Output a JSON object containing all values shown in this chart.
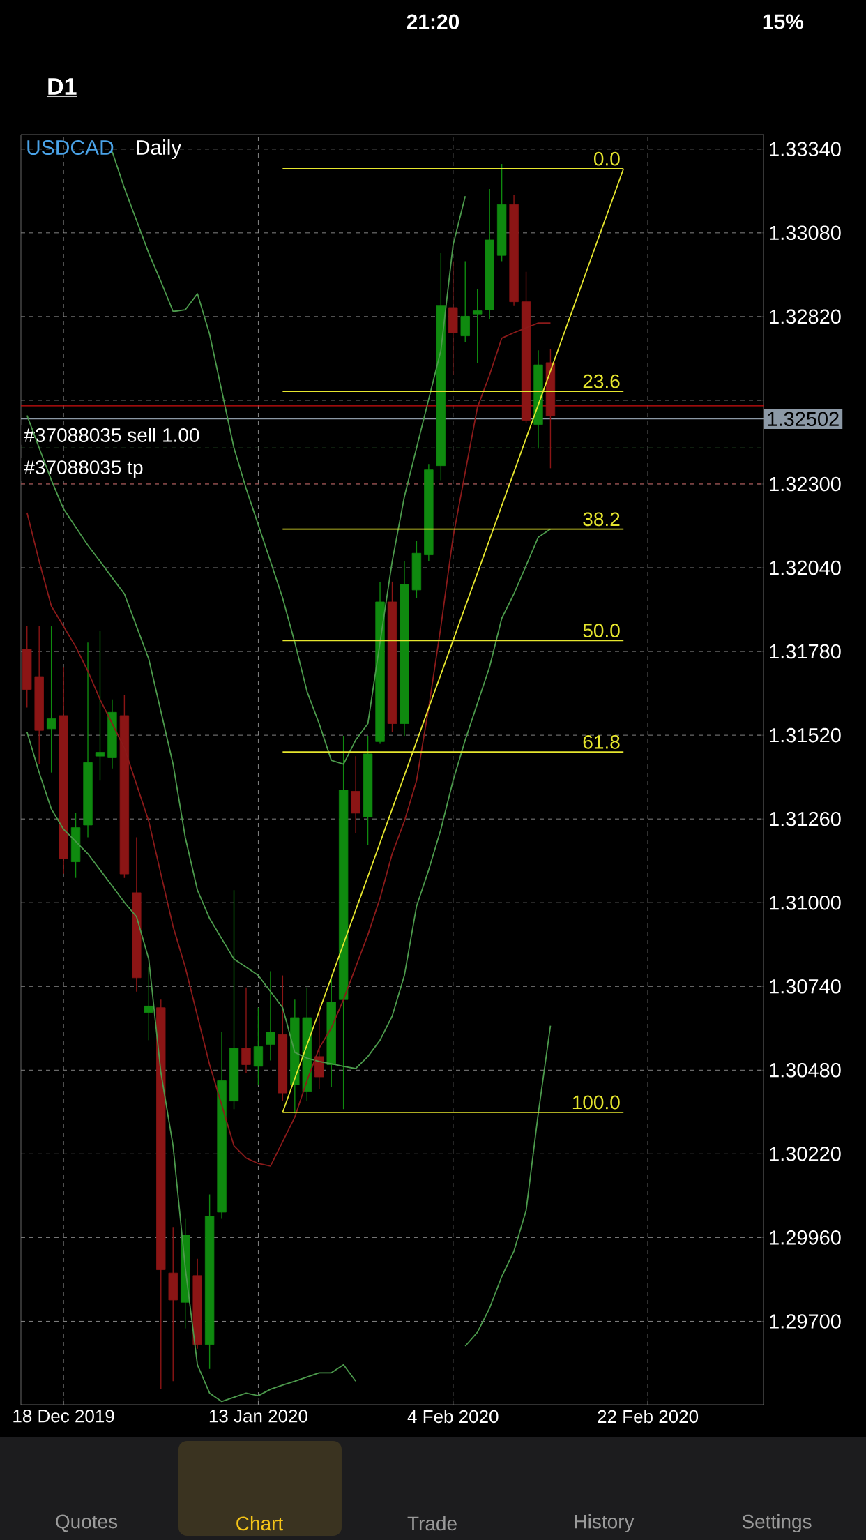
{
  "chart_data": {
    "type": "candlestick",
    "title": "USDCAD",
    "subtitle": "Daily",
    "categories": [
      null,
      null,
      null,
      "18 Dec 2019",
      null,
      null,
      null,
      null,
      null,
      null,
      null,
      null,
      null,
      null,
      null,
      null,
      null,
      null,
      null,
      "13 Jan 2020",
      null,
      null,
      null,
      null,
      null,
      null,
      null,
      null,
      null,
      null,
      null,
      null,
      null,
      null,
      null,
      "4 Feb 2020",
      null,
      null,
      null,
      null,
      null,
      null,
      null,
      null,
      null,
      null,
      null,
      null,
      null,
      null,
      null,
      "22 Feb 2020",
      null,
      null,
      null,
      null,
      null,
      null,
      null,
      null,
      null
    ],
    "ohlc": [
      [
        1.31787,
        1.31858,
        1.31606,
        1.31662
      ],
      [
        1.31702,
        1.31858,
        1.3143,
        1.31535
      ],
      [
        1.3154,
        1.31858,
        1.31404,
        1.31571
      ],
      [
        1.31581,
        1.31732,
        1.31089,
        1.31137
      ],
      [
        1.31127,
        1.31278,
        1.31077,
        1.31233
      ],
      [
        1.31241,
        1.31808,
        1.31203,
        1.31435
      ],
      [
        1.31455,
        1.31845,
        1.31379,
        1.31467
      ],
      [
        1.3145,
        1.31631,
        1.31417,
        1.31591
      ],
      [
        1.31581,
        1.31644,
        1.31077,
        1.31089
      ],
      [
        1.31031,
        1.31203,
        1.30724,
        1.30767
      ],
      [
        1.30659,
        1.308,
        1.30573,
        1.30679
      ],
      [
        1.30674,
        1.30699,
        1.29489,
        1.2986
      ],
      [
        1.2985,
        1.29993,
        1.29514,
        1.29766
      ],
      [
        1.29759,
        1.30018,
        1.29678,
        1.29968
      ],
      [
        1.29842,
        1.29894,
        1.29615,
        1.29628
      ],
      [
        1.29628,
        1.30094,
        1.29552,
        1.30026
      ],
      [
        1.30039,
        1.30598,
        1.30018,
        1.30447
      ],
      [
        1.30384,
        1.31039,
        1.30359,
        1.30548
      ],
      [
        1.30548,
        1.30737,
        1.30472,
        1.30497
      ],
      [
        1.30492,
        1.30674,
        1.30434,
        1.30553
      ],
      [
        1.3056,
        1.30787,
        1.3051,
        1.30598
      ],
      [
        1.3059,
        1.30774,
        1.30384,
        1.30409
      ],
      [
        1.30434,
        1.30699,
        1.30346,
        1.30643
      ],
      [
        1.30414,
        1.30737,
        1.30384,
        1.30643
      ],
      [
        1.30522,
        1.30686,
        1.30422,
        1.30459
      ],
      [
        1.30497,
        1.30762,
        1.30427,
        1.30691
      ],
      [
        1.30699,
        1.31518,
        1.30359,
        1.31349
      ],
      [
        1.31346,
        1.31455,
        1.31215,
        1.31278
      ],
      [
        1.31266,
        1.31518,
        1.31178,
        1.31462
      ],
      [
        1.315,
        1.31997,
        1.31493,
        1.31934
      ],
      [
        1.31934,
        1.31997,
        1.3153,
        1.31556
      ],
      [
        1.31556,
        1.3206,
        1.31518,
        1.31989
      ],
      [
        1.31971,
        1.32123,
        1.31946,
        1.32085
      ],
      [
        1.3208,
        1.32362,
        1.3206,
        1.32344
      ],
      [
        1.32357,
        1.33017,
        1.32312,
        1.32853
      ],
      [
        1.32848,
        1.32992,
        1.32639,
        1.3277
      ],
      [
        1.3276,
        1.32992,
        1.3274,
        1.32821
      ],
      [
        1.32828,
        1.32904,
        1.32677,
        1.32838
      ],
      [
        1.32841,
        1.33216,
        1.32811,
        1.33058
      ],
      [
        1.3301,
        1.33294,
        1.32992,
        1.33168
      ],
      [
        1.33168,
        1.33199,
        1.32853,
        1.32866
      ],
      [
        1.32866,
        1.32959,
        1.32488,
        1.32498
      ],
      [
        1.32485,
        1.32715,
        1.3241,
        1.3267
      ],
      [
        1.32677,
        1.3272,
        1.32349,
        1.32511
      ],
      null,
      null,
      null,
      null,
      null,
      null,
      null,
      null,
      null,
      null,
      null,
      null,
      null,
      null,
      null,
      null,
      null
    ],
    "colors": [
      "#8b1515",
      "#8b1515",
      "#0f8a0f",
      "#8b1515",
      "#0f8a0f",
      "#0f8a0f",
      "#0f8a0f",
      "#0f8a0f",
      "#8b1515",
      "#8b1515",
      "#0f8a0f",
      "#8b1515",
      "#8b1515",
      "#0f8a0f",
      "#8b1515",
      "#0f8a0f",
      "#0f8a0f",
      "#0f8a0f",
      "#8b1515",
      "#0f8a0f",
      "#0f8a0f",
      "#8b1515",
      "#0f8a0f",
      "#0f8a0f",
      "#8b1515",
      "#0f8a0f",
      "#0f8a0f",
      "#8b1515",
      "#0f8a0f",
      "#0f8a0f",
      "#8b1515",
      "#0f8a0f",
      "#0f8a0f",
      "#0f8a0f",
      "#0f8a0f",
      "#8b1515",
      "#0f8a0f",
      "#0f8a0f",
      "#0f8a0f",
      "#0f8a0f",
      "#8b1515",
      "#8b1515",
      "#0f8a0f",
      "#8b1515",
      null,
      null,
      null,
      null,
      null,
      null,
      null,
      null,
      null,
      null,
      null,
      null,
      null,
      null,
      null,
      null,
      null
    ],
    "ylim": [
      1.29441,
      1.33385
    ],
    "yticks": [
      {
        "value": 1.297,
        "label": "1.29700"
      },
      {
        "value": 1.2996,
        "label": "1.29960"
      },
      {
        "value": 1.3022,
        "label": "1.30220"
      },
      {
        "value": 1.3048,
        "label": "1.30480"
      },
      {
        "value": 1.3074,
        "label": "1.30740"
      },
      {
        "value": 1.31,
        "label": "1.31000"
      },
      {
        "value": 1.3126,
        "label": "1.31260"
      },
      {
        "value": 1.3152,
        "label": "1.31520"
      },
      {
        "value": 1.3178,
        "label": "1.31780"
      },
      {
        "value": 1.3204,
        "label": "1.32040"
      },
      {
        "value": 1.323,
        "label": "1.32300"
      },
      {
        "value": 1.3256,
        "label": null
      },
      {
        "value": 1.3282,
        "label": "1.32820"
      },
      {
        "value": 1.3308,
        "label": "1.33080"
      },
      {
        "value": 1.3334,
        "label": "1.33340"
      }
    ],
    "grid": true,
    "series": [
      {
        "type": "line",
        "color": "#4c9a4c",
        "values": [
          1.32513,
          1.32412,
          1.32312,
          1.32223,
          1.32166,
          1.3211,
          1.3206,
          1.32009,
          1.31959,
          1.31858,
          1.31757,
          1.31594,
          1.3143,
          1.31203,
          1.31039,
          1.30951,
          1.30888,
          1.30825,
          1.308,
          1.30774,
          1.30724,
          1.30674,
          1.30535,
          1.30517,
          1.30507,
          1.305,
          1.30492,
          1.30485,
          1.30522,
          1.30573,
          1.30648,
          1.30774,
          1.30989,
          1.31102,
          1.31228,
          1.31379,
          1.31505,
          1.31619,
          1.31732,
          1.31883,
          1.31959,
          1.32047,
          1.32135,
          1.3216,
          null,
          null,
          null,
          null,
          null,
          null,
          null,
          null,
          null,
          null,
          null,
          null,
          null,
          null,
          null,
          null,
          null
        ]
      },
      {
        "type": "line",
        "color": "#4c9a4c",
        "values": [
          null,
          null,
          null,
          null,
          null,
          null,
          null,
          1.33332,
          1.33219,
          1.33118,
          1.33017,
          1.32929,
          1.32836,
          1.32841,
          1.32891,
          1.32765,
          1.32589,
          1.32412,
          1.32286,
          1.32173,
          1.3206,
          1.31946,
          1.31808,
          1.31656,
          1.31556,
          1.31442,
          1.3143,
          1.31505,
          1.31556,
          1.31808,
          1.3206,
          1.32261,
          1.32412,
          1.32564,
          1.32715,
          1.33042,
          1.33194,
          null,
          null,
          null,
          null,
          null,
          null,
          null,
          null,
          null,
          null,
          null,
          null,
          null,
          null,
          null,
          null,
          null,
          null,
          null,
          null,
          null,
          null,
          null,
          null
        ]
      },
      {
        "type": "line",
        "color": "#4c9a4c",
        "values": [
          1.3153,
          1.31404,
          1.31291,
          1.31228,
          1.3119,
          1.31152,
          1.31102,
          1.31052,
          1.31001,
          1.30956,
          1.30825,
          1.30472,
          1.30245,
          1.29867,
          1.29565,
          1.29477,
          1.29451,
          1.29464,
          1.29477,
          1.29469,
          1.29489,
          1.29502,
          1.29514,
          1.29527,
          1.2954,
          1.2954,
          1.29565,
          1.29514,
          null,
          null,
          null,
          null,
          null,
          null,
          null,
          null,
          1.29623,
          1.29666,
          1.29741,
          1.29839,
          1.29918,
          1.30044,
          1.30346,
          1.30618,
          null,
          null,
          null,
          null,
          null,
          null,
          null,
          null,
          null,
          null,
          null,
          null,
          null,
          null,
          null,
          null,
          null
        ]
      },
      {
        "type": "line",
        "color": "#8b1a1a",
        "values": [
          1.32211,
          1.3206,
          1.31921,
          1.31858,
          1.31795,
          1.31719,
          1.31631,
          1.31556,
          1.3148,
          1.31367,
          1.31253,
          1.31089,
          1.30926,
          1.308,
          1.30648,
          1.30497,
          1.30371,
          1.30245,
          1.30207,
          1.3019,
          1.30182,
          1.30258,
          1.30334,
          1.30447,
          1.30548,
          1.30611,
          1.30699,
          1.308,
          1.309,
          1.31014,
          1.31152,
          1.31253,
          1.31379,
          1.31606,
          1.31858,
          1.32135,
          1.32337,
          1.32538,
          1.32639,
          1.32753,
          1.3277,
          1.32785,
          1.328,
          1.328,
          null,
          null,
          null,
          null,
          null,
          null,
          null,
          null,
          null,
          null,
          null,
          null,
          null,
          null,
          null,
          null,
          null
        ]
      },
      {
        "type": "line",
        "color": "#e6e62e",
        "name": "0.0",
        "values": [
          null,
          null,
          null,
          null,
          null,
          null,
          null,
          null,
          null,
          null,
          null,
          null,
          null,
          null,
          null,
          null,
          null,
          null,
          null,
          null,
          null,
          1.33279,
          1.33279,
          1.33279,
          1.33279,
          1.33279,
          1.33279,
          1.33279,
          1.33279,
          1.33279,
          1.33279,
          1.33279,
          1.33279,
          1.33279,
          1.33279,
          1.33279,
          1.33279,
          1.33279,
          1.33279,
          1.33279,
          1.33279,
          1.33279,
          1.33279,
          1.33279,
          1.33279,
          1.33279,
          1.33279,
          1.33279,
          1.33279,
          1.33279,
          null,
          null,
          null,
          null,
          null,
          null,
          null,
          null,
          null,
          null,
          null
        ]
      },
      {
        "type": "line",
        "color": "#e6e62e",
        "name": "23.6",
        "values": [
          null,
          null,
          null,
          null,
          null,
          null,
          null,
          null,
          null,
          null,
          null,
          null,
          null,
          null,
          null,
          null,
          null,
          null,
          null,
          null,
          null,
          1.32588,
          1.32588,
          1.32588,
          1.32588,
          1.32588,
          1.32588,
          1.32588,
          1.32588,
          1.32588,
          1.32588,
          1.32588,
          1.32588,
          1.32588,
          1.32588,
          1.32588,
          1.32588,
          1.32588,
          1.32588,
          1.32588,
          1.32588,
          1.32588,
          1.32588,
          1.32588,
          1.32588,
          1.32588,
          1.32588,
          1.32588,
          1.32588,
          1.32588,
          null,
          null,
          null,
          null,
          null,
          null,
          null,
          null,
          null,
          null,
          null
        ]
      },
      {
        "type": "line",
        "color": "#e6e62e",
        "name": "38.2",
        "values": [
          null,
          null,
          null,
          null,
          null,
          null,
          null,
          null,
          null,
          null,
          null,
          null,
          null,
          null,
          null,
          null,
          null,
          null,
          null,
          null,
          null,
          1.3216,
          1.3216,
          1.3216,
          1.3216,
          1.3216,
          1.3216,
          1.3216,
          1.3216,
          1.3216,
          1.3216,
          1.3216,
          1.3216,
          1.3216,
          1.3216,
          1.3216,
          1.3216,
          1.3216,
          1.3216,
          1.3216,
          1.3216,
          1.3216,
          1.3216,
          1.3216,
          1.3216,
          1.3216,
          1.3216,
          1.3216,
          1.3216,
          1.3216,
          null,
          null,
          null,
          null,
          null,
          null,
          null,
          null,
          null,
          null,
          null
        ]
      },
      {
        "type": "line",
        "color": "#e6e62e",
        "name": "50.0",
        "values": [
          null,
          null,
          null,
          null,
          null,
          null,
          null,
          null,
          null,
          null,
          null,
          null,
          null,
          null,
          null,
          null,
          null,
          null,
          null,
          null,
          null,
          1.31814,
          1.31814,
          1.31814,
          1.31814,
          1.31814,
          1.31814,
          1.31814,
          1.31814,
          1.31814,
          1.31814,
          1.31814,
          1.31814,
          1.31814,
          1.31814,
          1.31814,
          1.31814,
          1.31814,
          1.31814,
          1.31814,
          1.31814,
          1.31814,
          1.31814,
          1.31814,
          1.31814,
          1.31814,
          1.31814,
          1.31814,
          1.31814,
          1.31814,
          null,
          null,
          null,
          null,
          null,
          null,
          null,
          null,
          null,
          null,
          null
        ]
      },
      {
        "type": "line",
        "color": "#e6e62e",
        "name": "61.8",
        "values": [
          null,
          null,
          null,
          null,
          null,
          null,
          null,
          null,
          null,
          null,
          null,
          null,
          null,
          null,
          null,
          null,
          null,
          null,
          null,
          null,
          null,
          1.31468,
          1.31468,
          1.31468,
          1.31468,
          1.31468,
          1.31468,
          1.31468,
          1.31468,
          1.31468,
          1.31468,
          1.31468,
          1.31468,
          1.31468,
          1.31468,
          1.31468,
          1.31468,
          1.31468,
          1.31468,
          1.31468,
          1.31468,
          1.31468,
          1.31468,
          1.31468,
          1.31468,
          1.31468,
          1.31468,
          1.31468,
          1.31468,
          1.31468,
          null,
          null,
          null,
          null,
          null,
          null,
          null,
          null,
          null,
          null,
          null
        ]
      },
      {
        "type": "line",
        "color": "#e6e62e",
        "name": "100.0",
        "values": [
          null,
          null,
          null,
          null,
          null,
          null,
          null,
          null,
          null,
          null,
          null,
          null,
          null,
          null,
          null,
          null,
          null,
          null,
          null,
          null,
          null,
          1.30349,
          1.30349,
          1.30349,
          1.30349,
          1.30349,
          1.30349,
          1.30349,
          1.30349,
          1.30349,
          1.30349,
          1.30349,
          1.30349,
          1.30349,
          1.30349,
          1.30349,
          1.30349,
          1.30349,
          1.30349,
          1.30349,
          1.30349,
          1.30349,
          1.30349,
          1.30349,
          1.30349,
          1.30349,
          1.30349,
          1.30349,
          1.30349,
          1.30349,
          null,
          null,
          null,
          null,
          null,
          null,
          null,
          null,
          null,
          null,
          null
        ]
      },
      {
        "type": "line",
        "color": "#e6e62e",
        "values": [
          null,
          null,
          null,
          null,
          null,
          null,
          null,
          null,
          null,
          null,
          null,
          null,
          null,
          null,
          null,
          null,
          null,
          null,
          null,
          null,
          null,
          1.30349,
          1.30454,
          1.30558,
          1.30663,
          1.30768,
          1.30872,
          1.30977,
          1.31081,
          1.31186,
          1.31291,
          1.31395,
          1.315,
          1.31605,
          1.31709,
          1.31814,
          1.31919,
          1.32023,
          1.32128,
          1.32233,
          1.32337,
          1.32442,
          1.32546,
          1.32651,
          1.32756,
          1.3286,
          1.32965,
          1.3307,
          1.33174,
          1.33279,
          null,
          null,
          null,
          null,
          null,
          null,
          null,
          null,
          null,
          null,
          null
        ]
      }
    ],
    "ref_lines": [
      {
        "axis": "y",
        "value": 1.32543,
        "color": "#d01010"
      },
      {
        "axis": "y",
        "value": 1.32502,
        "label": "1.32502",
        "color": "#8c99a6"
      },
      {
        "axis": "y",
        "value": 1.32412,
        "label": "#37088035 sell 1.00",
        "color": "#3a7a3a",
        "line_style": "dashed"
      },
      {
        "axis": "y",
        "value": 1.323,
        "label": "#37088035 tp",
        "color": "#b03030",
        "line_style": "dashed"
      }
    ],
    "annotations": [
      "21:20",
      "15%",
      "D1",
      "Quotes",
      "Chart",
      "Trade",
      "History",
      "Settings"
    ]
  }
}
